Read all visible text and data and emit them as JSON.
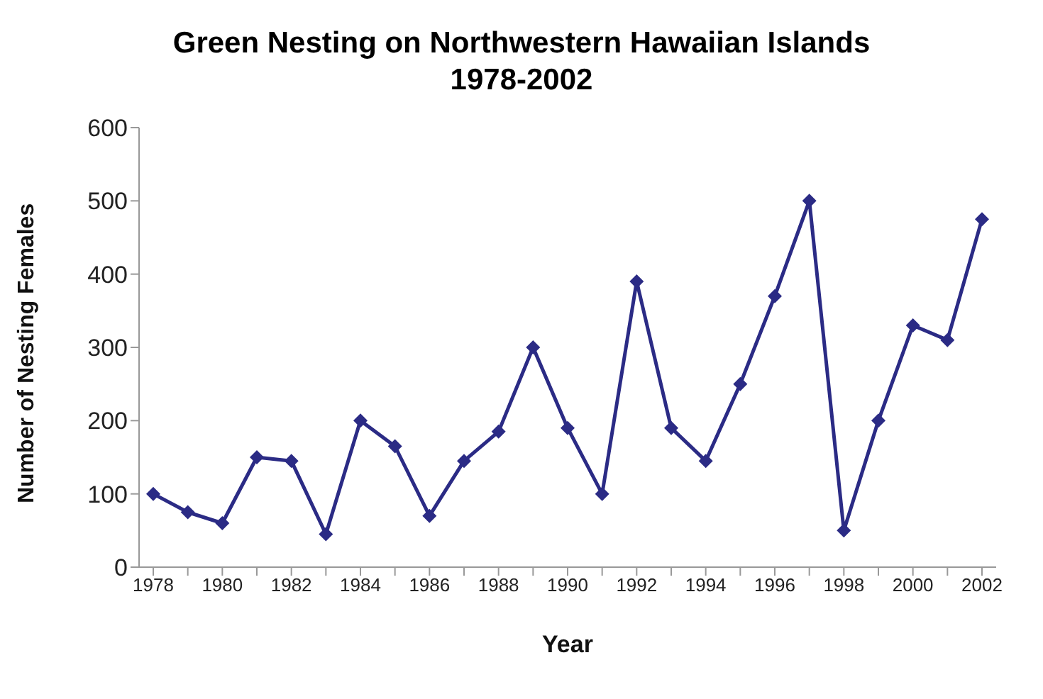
{
  "chart_data": {
    "type": "line",
    "title": "Green Nesting on Northwestern Hawaiian Islands\n1978-2002",
    "xlabel": "Year",
    "ylabel": "Number of Nesting Females",
    "categories": [
      "1978",
      null,
      "1980",
      null,
      "1982",
      null,
      "1984",
      null,
      "1986",
      null,
      "1988",
      null,
      "1990",
      null,
      "1992",
      null,
      "1994",
      null,
      "1996",
      null,
      "1998",
      null,
      "2000",
      null,
      "2002"
    ],
    "series": [
      {
        "color": "#2b2b85",
        "values": [
          100,
          75,
          60,
          150,
          145,
          45,
          200,
          165,
          70,
          145,
          185,
          300,
          190,
          100,
          390,
          190,
          145,
          250,
          370,
          500,
          50,
          200,
          330,
          310,
          475
        ]
      }
    ],
    "ylim": [
      0,
      600
    ],
    "yticks": [
      0,
      100,
      200,
      300,
      400,
      500,
      600
    ],
    "grid": false,
    "legend": false,
    "marker": "diamond",
    "line_style": "solid"
  }
}
